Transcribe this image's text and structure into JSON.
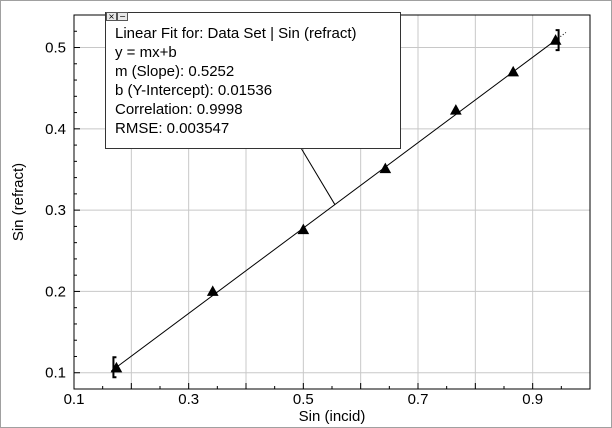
{
  "chart_data": {
    "type": "scatter",
    "xlabel": "Sin (incid)",
    "ylabel": "Sin (refract)",
    "xlim": [
      0.1,
      1.0
    ],
    "ylim": [
      0.08,
      0.54
    ],
    "x_ticks": [
      0.1,
      0.3,
      0.5,
      0.7,
      0.9
    ],
    "x_tick_labels": [
      "0.1",
      "0.3",
      "0.5",
      "0.7",
      "0.9"
    ],
    "y_ticks": [
      0.1,
      0.2,
      0.3,
      0.4,
      0.5
    ],
    "y_tick_labels": [
      "0.1",
      "0.2",
      "0.3",
      "0.4",
      "0.5"
    ],
    "grid": true,
    "marker": "triangle",
    "x": [
      0.174,
      0.342,
      0.5,
      0.643,
      0.766,
      0.866,
      0.94
    ],
    "y": [
      0.106,
      0.2,
      0.276,
      0.351,
      0.423,
      0.47,
      0.509
    ],
    "fit": {
      "slope": 0.5252,
      "intercept": 0.01536,
      "x_range": [
        0.174,
        0.94
      ],
      "extended_x_range": [
        0.165,
        0.958
      ]
    }
  },
  "fit_box": {
    "title": "Linear Fit for:  Data Set | Sin (refract)",
    "equation": "y = mx+b",
    "slope": "m (Slope): 0.5252",
    "intercept": "b (Y-Intercept): 0.01536",
    "correlation": "Correlation: 0.9998",
    "rmse": "RMSE: 0.003547",
    "close_glyph": "×",
    "minimize_glyph": "−"
  }
}
